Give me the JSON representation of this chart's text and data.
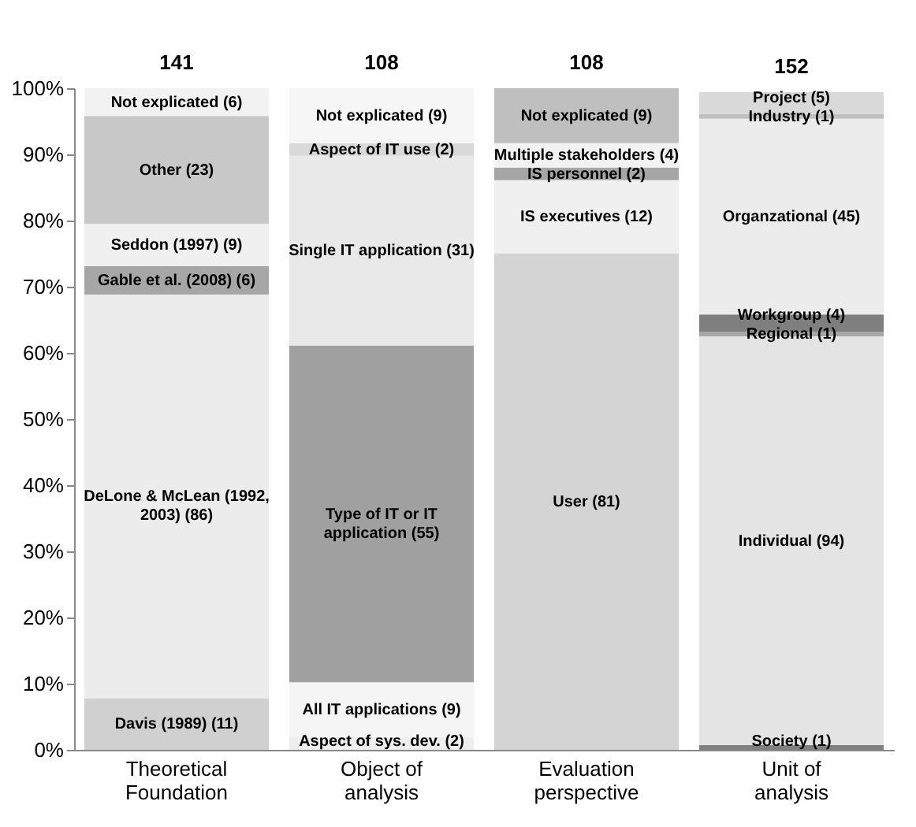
{
  "chart_data": {
    "type": "bar",
    "stacked": true,
    "categories": [
      "Theoretical Foundation",
      "Object of analysis",
      "Evaluation perspective",
      "Unit of analysis"
    ],
    "ylim": [
      0,
      100
    ],
    "yticks": [
      {
        "value": 0,
        "label": "0%"
      },
      {
        "value": 10,
        "label": "10%"
      },
      {
        "value": 20,
        "label": "20%"
      },
      {
        "value": 30,
        "label": "30%"
      },
      {
        "value": 40,
        "label": "40%"
      },
      {
        "value": 50,
        "label": "50%"
      },
      {
        "value": 60,
        "label": "60%"
      },
      {
        "value": 70,
        "label": "70%"
      },
      {
        "value": 80,
        "label": "80%"
      },
      {
        "value": 90,
        "label": "90%"
      },
      {
        "value": 100,
        "label": "100%"
      }
    ],
    "series": [
      {
        "color": "#d0d0d0",
        "values": [
          7.8,
          null,
          null,
          null
        ]
      },
      {
        "color": "#ececec",
        "values": [
          61.0,
          null,
          null,
          null
        ]
      },
      {
        "color": "#a6a6a6",
        "values": [
          4.3,
          null,
          null,
          null
        ]
      },
      {
        "color": "#f0f0f0",
        "values": [
          6.4,
          null,
          null,
          null
        ]
      },
      {
        "color": "#c8c8c8",
        "values": [
          16.3,
          null,
          null,
          null
        ]
      },
      {
        "color": "#f2f2f2",
        "values": [
          4.2,
          null,
          null,
          null
        ]
      },
      {
        "color": "#eeeeee",
        "values": [
          null,
          1.9,
          null,
          null
        ]
      },
      {
        "color": "#f5f5f5",
        "values": [
          null,
          8.3,
          null,
          null
        ]
      },
      {
        "color": "#a0a0a0",
        "values": [
          null,
          50.9,
          null,
          null
        ]
      },
      {
        "color": "#e9e9e9",
        "values": [
          null,
          28.7,
          null,
          null
        ]
      },
      {
        "color": "#d9d9d9",
        "values": [
          null,
          1.9,
          null,
          null
        ]
      },
      {
        "color": "#f6f6f6",
        "values": [
          null,
          8.3,
          null,
          null
        ]
      },
      {
        "color": "#d4d4d4",
        "values": [
          null,
          null,
          75.0,
          null
        ]
      },
      {
        "color": "#f0f0f0",
        "values": [
          null,
          null,
          11.1,
          null
        ]
      },
      {
        "color": "#a6a6a6",
        "values": [
          null,
          null,
          1.9,
          null
        ]
      },
      {
        "color": "#f2f2f2",
        "values": [
          null,
          null,
          3.7,
          null
        ]
      },
      {
        "color": "#bfbfbf",
        "values": [
          null,
          null,
          8.3,
          null
        ]
      },
      {
        "color": "#808080",
        "values": [
          null,
          null,
          null,
          0.7
        ]
      },
      {
        "color": "#e4e4e4",
        "values": [
          null,
          null,
          null,
          61.8
        ]
      },
      {
        "color": "#a6a6a6",
        "values": [
          null,
          null,
          null,
          0.7
        ]
      },
      {
        "color": "#7f7f7f",
        "values": [
          null,
          null,
          null,
          2.6
        ]
      },
      {
        "color": "#ececec",
        "values": [
          null,
          null,
          null,
          29.6
        ]
      },
      {
        "color": "#bfbfbf",
        "values": [
          null,
          null,
          null,
          0.7
        ]
      },
      {
        "color": "#d9d9d9",
        "values": [
          null,
          null,
          null,
          3.3
        ]
      }
    ],
    "annotations": [
      {
        "text": "141",
        "x": "Theoretical Foundation",
        "y": 100
      },
      {
        "text": "108",
        "x": "Object of analysis",
        "y": 100
      },
      {
        "text": "108",
        "x": "Evaluation perspective",
        "y": 100
      },
      {
        "text": "152",
        "x": "Unit of analysis",
        "y": 99.4
      },
      "Davis (1989) (11)",
      "DeLone & McLean (1992, 2003) (86)",
      "Gable et al.  (2008) (6)",
      "Seddon (1997) (9)",
      "Other (23)",
      "Not explicated (6)",
      "Aspect of sys. dev. (2)",
      "All IT applications (9)",
      "Type of IT or IT application (55)",
      "Single IT application (31)",
      "Aspect of IT use (2)",
      "Not explicated (9)",
      "User (81)",
      "IS executives (12)",
      "IS personnel (2)",
      "Multiple stakeholders (4)",
      "Not explicated (9)",
      "Society (1)",
      "Individual (94)",
      "Regional (1)",
      "Workgroup (4)",
      "Organzational (45)",
      "Industry (1)",
      "Project (5)"
    ]
  }
}
